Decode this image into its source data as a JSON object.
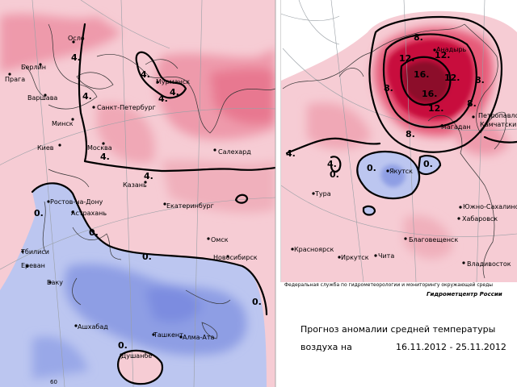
{
  "credit_agency": "Федеральная служба по гидрометеорологии и мониторингу окружающей среды",
  "credit_center": "Гидрометцентр России",
  "forecast_title": "Прогноз аномалии средней температуры",
  "forecast_subject": "воздуха на",
  "forecast_period": "16.11.2012 - 25.11.2012",
  "grid_label": "60",
  "colors": {
    "warm_light": "#f4c4cc",
    "warm_mid": "#ee9aab",
    "warm_strong": "#e65a78",
    "warm_max": "#c8103c",
    "cold_light": "#b9c5f0",
    "cold_mid": "#8f9fe6"
  },
  "left_map": {
    "cities": [
      "Осло",
      "Берлин",
      "Прага",
      "Варшава",
      "Минск",
      "Киев",
      "Санкт-Петербург",
      "Мурманск",
      "Москва",
      "Салехард",
      "Казань",
      "Ростов-на-Дону",
      "Екатеринбург",
      "Астрахань",
      "Тбилиси",
      "Ереван",
      "Баку",
      "Омск",
      "Новосибирск",
      "Ашхабад",
      "Ташкент",
      "Алма-Ата",
      "Душанбе"
    ],
    "isolines": [
      "4.",
      "4.",
      "4.",
      "4.",
      "4.",
      "4.",
      "4.",
      "0.",
      "0.",
      "0.",
      "0.",
      "0."
    ]
  },
  "right_map": {
    "cities": [
      "Анадырь",
      "Магадан",
      "Петропавловск-",
      "Камчатский",
      "Якутск",
      "Тура",
      "Южно-Сахалинск",
      "Хабаровск",
      "Благовещенск",
      "Красноярск",
      "Иркутск",
      "Чита",
      "Владивосток"
    ],
    "isolines": [
      "8.",
      "8.",
      "12.",
      "12.",
      "16.",
      "16.",
      "12.",
      "12.",
      "8.",
      "8.",
      "8.",
      "4.",
      "4.",
      "0.",
      "0.",
      "0."
    ]
  }
}
